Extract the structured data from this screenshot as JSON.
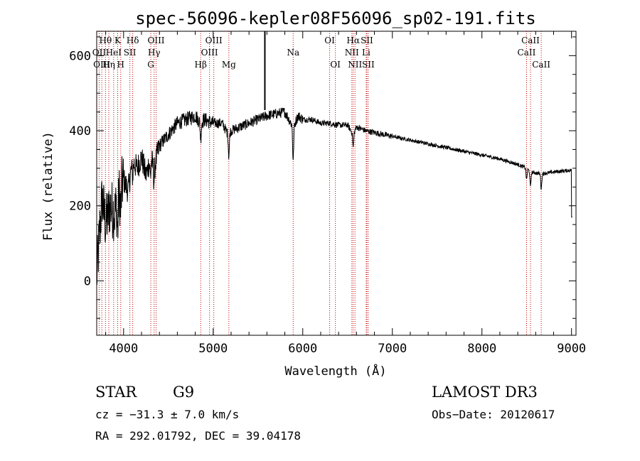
{
  "chart_data": {
    "type": "line",
    "title": "spec-56096-kepler08F56096_sp02-191.fits",
    "xlabel": "Wavelength (Å)",
    "ylabel": "Flux (relative)",
    "xlim": [
      3700,
      9050
    ],
    "ylim": [
      -145,
      665
    ],
    "x_ticks": [
      4000,
      5000,
      6000,
      7000,
      8000,
      9000
    ],
    "y_ticks": [
      0,
      200,
      400,
      600
    ],
    "spectrum_anchors": [
      [
        3700,
        10
      ],
      [
        3730,
        120
      ],
      [
        3760,
        220
      ],
      [
        3800,
        150
      ],
      [
        3850,
        200
      ],
      [
        3900,
        180
      ],
      [
        3950,
        230
      ],
      [
        4000,
        270
      ],
      [
        4050,
        240
      ],
      [
        4100,
        320
      ],
      [
        4150,
        300
      ],
      [
        4200,
        330
      ],
      [
        4250,
        280
      ],
      [
        4300,
        330
      ],
      [
        4340,
        300
      ],
      [
        4400,
        360
      ],
      [
        4500,
        390
      ],
      [
        4600,
        420
      ],
      [
        4700,
        430
      ],
      [
        4800,
        440
      ],
      [
        4861,
        420
      ],
      [
        4900,
        430
      ],
      [
        5000,
        420
      ],
      [
        5100,
        420
      ],
      [
        5167,
        390
      ],
      [
        5200,
        400
      ],
      [
        5300,
        410
      ],
      [
        5400,
        420
      ],
      [
        5500,
        430
      ],
      [
        5600,
        440
      ],
      [
        5700,
        445
      ],
      [
        5800,
        450
      ],
      [
        5893,
        410
      ],
      [
        5950,
        440
      ],
      [
        6000,
        430
      ],
      [
        6100,
        430
      ],
      [
        6200,
        420
      ],
      [
        6300,
        420
      ],
      [
        6400,
        415
      ],
      [
        6500,
        415
      ],
      [
        6563,
        390
      ],
      [
        6600,
        410
      ],
      [
        6700,
        400
      ],
      [
        6800,
        395
      ],
      [
        7000,
        385
      ],
      [
        7200,
        375
      ],
      [
        7400,
        365
      ],
      [
        7600,
        355
      ],
      [
        7800,
        345
      ],
      [
        8000,
        335
      ],
      [
        8200,
        325
      ],
      [
        8400,
        310
      ],
      [
        8498,
        300
      ],
      [
        8542,
        290
      ],
      [
        8662,
        285
      ],
      [
        8800,
        290
      ],
      [
        9000,
        295
      ]
    ],
    "spike": {
      "x": 5577,
      "y_top": 665,
      "y_bottom": 455
    },
    "absorption_dips": [
      {
        "x": 3934,
        "depth": 80
      },
      {
        "x": 3968,
        "depth": 60
      },
      {
        "x": 4101,
        "depth": 40
      },
      {
        "x": 4300,
        "depth": 50
      },
      {
        "x": 4340,
        "depth": 35
      },
      {
        "x": 4861,
        "depth": 40
      },
      {
        "x": 5175,
        "depth": 60
      },
      {
        "x": 5893,
        "depth": 90
      },
      {
        "x": 6563,
        "depth": 35
      },
      {
        "x": 8498,
        "depth": 30
      },
      {
        "x": 8542,
        "depth": 40
      },
      {
        "x": 8662,
        "depth": 40
      }
    ],
    "spectral_lines": [
      {
        "label": "Hθ",
        "x": 3798,
        "row": 1
      },
      {
        "label": "OII",
        "x": 3727,
        "row": 2
      },
      {
        "label": "OIII",
        "x": 3757,
        "row": 3
      },
      {
        "label": "K",
        "x": 3934,
        "row": 1
      },
      {
        "label": "HeI",
        "x": 3889,
        "row": 2
      },
      {
        "label": "Hη",
        "x": 3835,
        "row": 3
      },
      {
        "label": "SII",
        "x": 4070,
        "row": 2
      },
      {
        "label": "H",
        "x": 3968,
        "row": 3
      },
      {
        "label": "Hδ",
        "x": 4102,
        "row": 1
      },
      {
        "label": "OIII",
        "x": 4363,
        "row": 1
      },
      {
        "label": "Hγ",
        "x": 4341,
        "row": 2
      },
      {
        "label": "G",
        "x": 4304,
        "row": 3
      },
      {
        "label": "OIII",
        "x": 5007,
        "row": 1
      },
      {
        "label": "OIII",
        "x": 4959,
        "row": 2
      },
      {
        "label": "Hβ",
        "x": 4861,
        "row": 3
      },
      {
        "label": "Mg",
        "x": 5175,
        "row": 3
      },
      {
        "label": "Na",
        "x": 5893,
        "row": 2
      },
      {
        "label": "OI",
        "x": 6300,
        "row": 1
      },
      {
        "label": "OI",
        "x": 6364,
        "row": 3
      },
      {
        "label": "Hα",
        "x": 6563,
        "row": 1
      },
      {
        "label": "NII",
        "x": 6548,
        "row": 2
      },
      {
        "label": "NII",
        "x": 6583,
        "row": 3
      },
      {
        "label": "SII",
        "x": 6716,
        "row": 1
      },
      {
        "label": "Li",
        "x": 6708,
        "row": 2
      },
      {
        "label": "SII",
        "x": 6731,
        "row": 3
      },
      {
        "label": "CaII",
        "x": 8542,
        "row": 1
      },
      {
        "label": "CaII",
        "x": 8498,
        "row": 2
      },
      {
        "label": "CaII",
        "x": 8662,
        "row": 3
      }
    ]
  },
  "info": {
    "class": "STAR",
    "subclass": "G9",
    "survey": "LAMOST DR3",
    "cz": "cz = −31.3 ± 7.0 km/s",
    "obs_date": "Obs−Date: 20120617",
    "coords": "RA = 292.01792, DEC =  39.04178"
  }
}
